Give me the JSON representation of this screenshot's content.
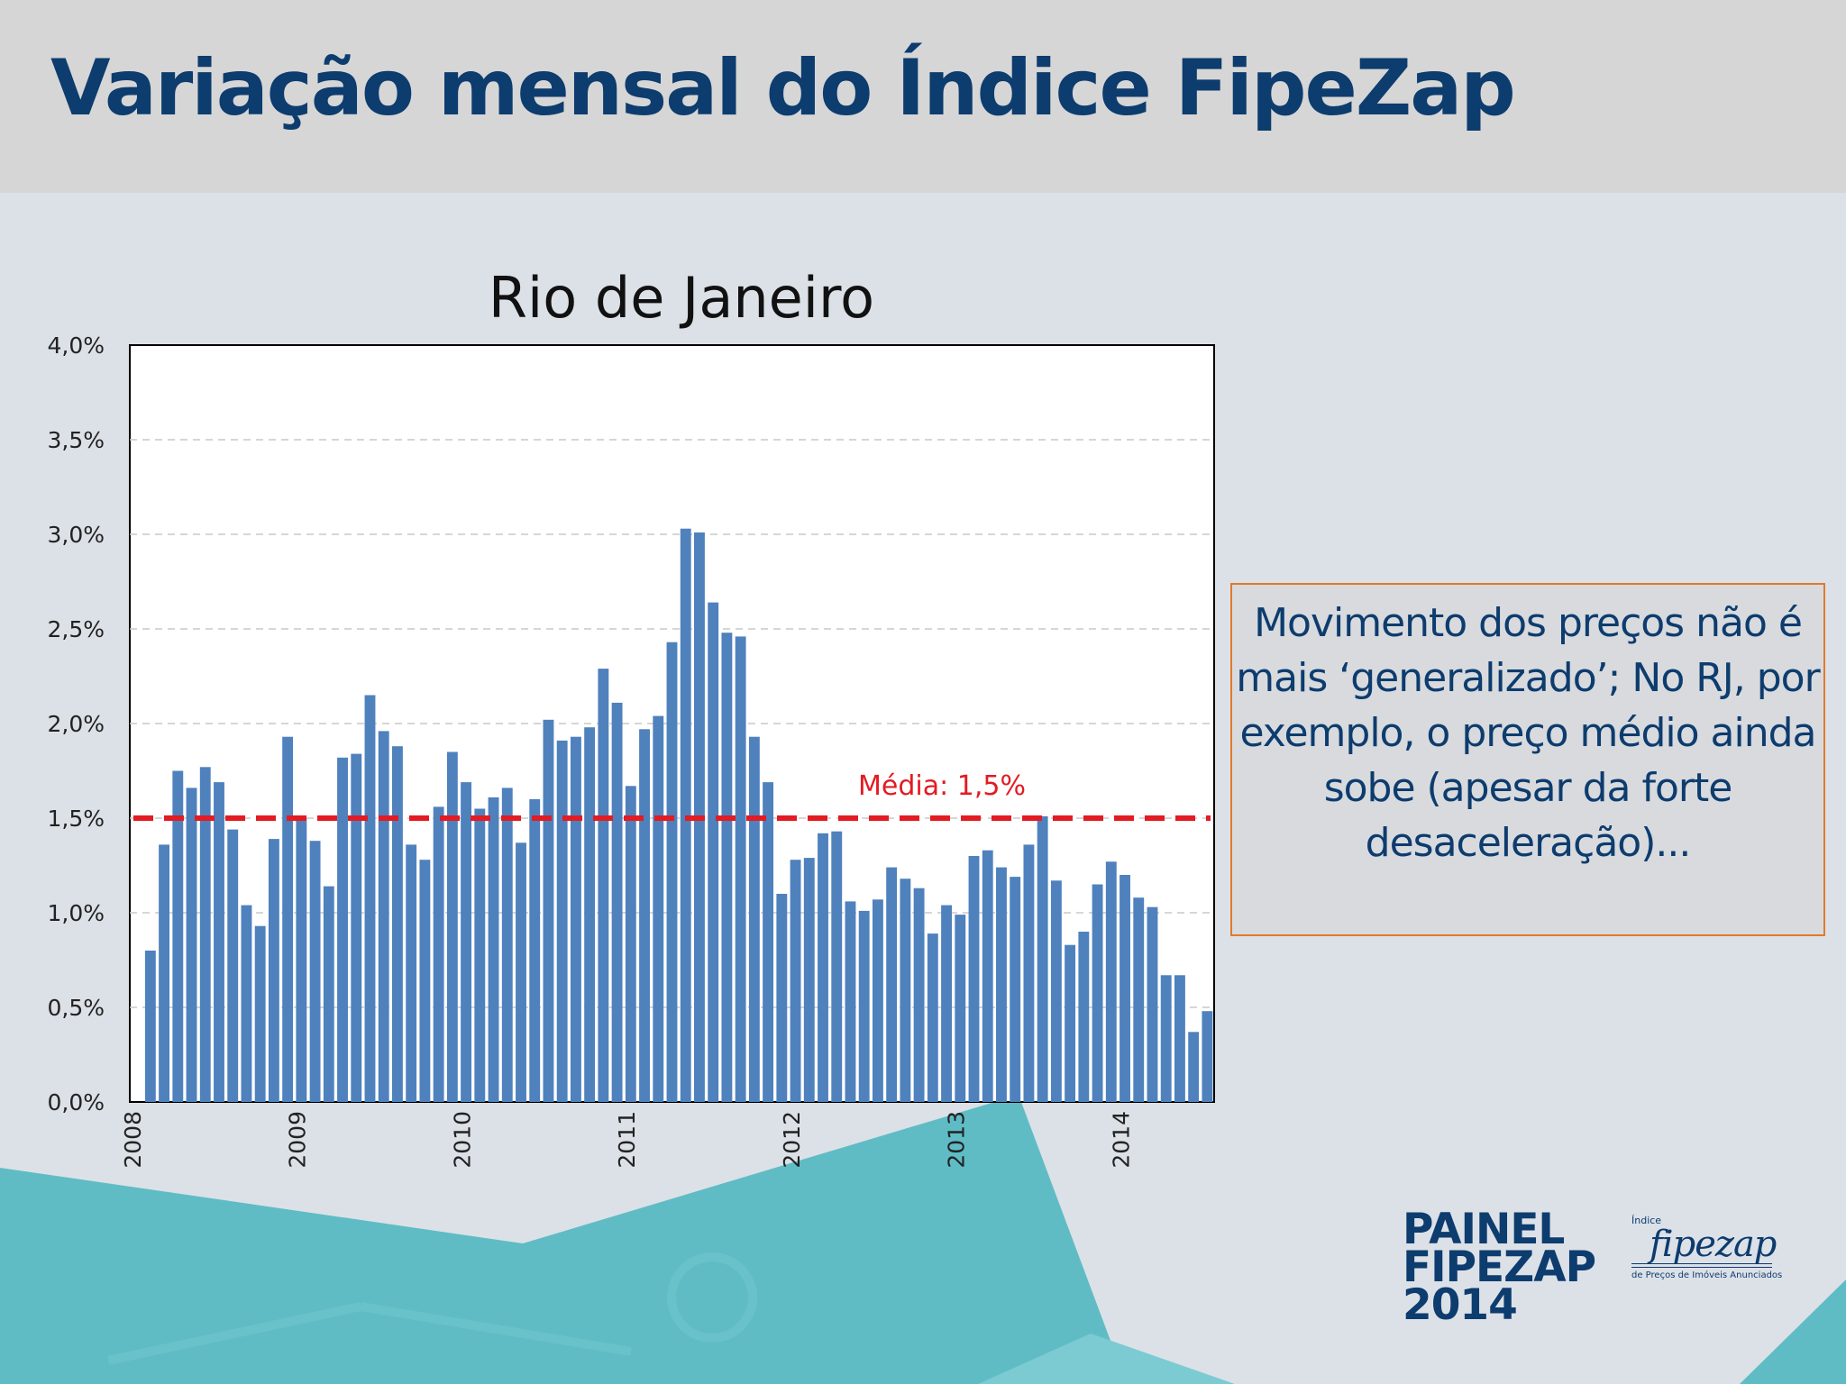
{
  "header": {
    "title": "Variação mensal do Índice FipeZap"
  },
  "note": {
    "text": "Movimento dos preços não é mais ‘generalizado’; No RJ, por exemplo, o preço médio ainda sobe (apesar da forte desaceleração)..."
  },
  "brand": {
    "line1": "PAINEL",
    "line2": "FIPEZAP",
    "line3": "2014"
  },
  "logo": {
    "small": "Índice",
    "name": "fipezap",
    "tagline": "de Preços de Imóveis Anunciados",
    "name_icon": "fipezap-logo-icon"
  },
  "colors": {
    "bar": "#4f81bd",
    "mean_line": "#e31b23",
    "title": "#0d3c6e",
    "teal": "#5fbcc5"
  },
  "chart_data": {
    "type": "bar",
    "title": "Rio de Janeiro",
    "xlabel": "",
    "ylabel": "",
    "ylim": [
      0,
      4.0
    ],
    "y_ticks": [
      "0,0%",
      "0,5%",
      "1,0%",
      "1,5%",
      "2,0%",
      "2,5%",
      "3,0%",
      "3,5%",
      "4,0%"
    ],
    "x_tick_labels": [
      "2008",
      "2009",
      "2010",
      "2011",
      "2012",
      "2013",
      "2014"
    ],
    "grid": true,
    "start": "2008-02",
    "frequency": "monthly",
    "values": [
      0.8,
      1.36,
      1.75,
      1.66,
      1.77,
      1.69,
      1.44,
      1.04,
      0.93,
      1.39,
      1.93,
      1.5,
      1.38,
      1.14,
      1.82,
      1.84,
      2.15,
      1.96,
      1.88,
      1.36,
      1.28,
      1.56,
      1.85,
      1.69,
      1.55,
      1.61,
      1.66,
      1.37,
      1.6,
      2.02,
      1.91,
      1.93,
      1.98,
      2.29,
      2.11,
      1.67,
      1.97,
      2.04,
      2.43,
      3.03,
      3.01,
      2.64,
      2.48,
      2.46,
      1.93,
      1.69,
      1.1,
      1.28,
      1.29,
      1.42,
      1.43,
      1.06,
      1.01,
      1.07,
      1.24,
      1.18,
      1.13,
      0.89,
      1.04,
      0.99,
      1.3,
      1.33,
      1.24,
      1.19,
      1.36,
      1.51,
      1.17,
      0.83,
      0.9,
      1.15,
      1.27,
      1.2,
      1.08,
      1.03,
      0.67,
      0.67,
      0.37,
      0.48
    ],
    "mean": {
      "value": 1.5,
      "label": "Média: 1,5%"
    }
  }
}
